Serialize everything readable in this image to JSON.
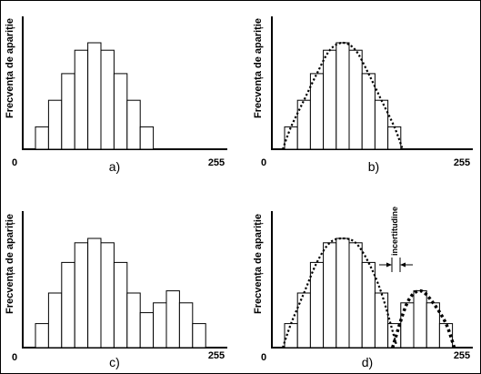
{
  "figure": {
    "panels": [
      {
        "caption": "a)",
        "ylabel": "Frecvența de apariție",
        "x_start": "0",
        "x_end": "255",
        "bars": [
          0.21,
          0.46,
          0.71,
          0.93,
          1.0,
          0.93,
          0.71,
          0.46,
          0.21
        ],
        "envelope": false,
        "annotation": ""
      },
      {
        "caption": "b)",
        "ylabel": "Frecvența de apariție",
        "x_start": "0",
        "x_end": "255",
        "bars": [
          0.21,
          0.46,
          0.71,
          0.93,
          1.0,
          0.93,
          0.71,
          0.46,
          0.21
        ],
        "envelope": true,
        "annotation": ""
      },
      {
        "caption": "c)",
        "ylabel": "Frecvența de apariție",
        "x_start": "0",
        "x_end": "255",
        "bars": [
          0.22,
          0.5,
          0.78,
          0.96,
          1.0,
          0.96,
          0.78,
          0.5,
          0.32,
          0.41,
          0.52,
          0.41,
          0.22
        ],
        "envelope": false,
        "annotation": ""
      },
      {
        "caption": "d)",
        "ylabel": "Frecvența de apariție",
        "x_start": "0",
        "x_end": "255",
        "bars": [
          0.22,
          0.5,
          0.78,
          0.96,
          1.0,
          0.96,
          0.78,
          0.5,
          0.22,
          0.41,
          0.52,
          0.41,
          0.22
        ],
        "envelope": true,
        "annotation": "incertitudine"
      }
    ]
  }
}
